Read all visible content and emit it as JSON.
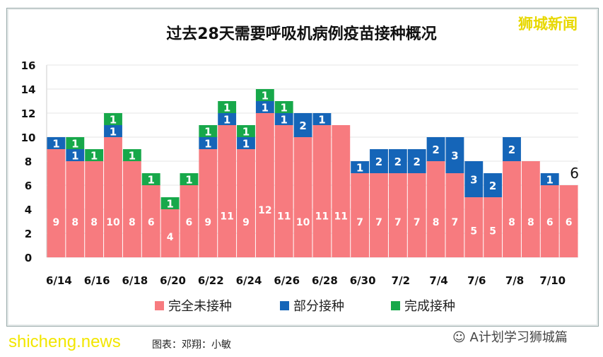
{
  "chart_data": {
    "type": "bar",
    "stacked": true,
    "title": "过去28天需要呼吸机病例疫苗接种概况",
    "categories": [
      "6/14",
      "6/15",
      "6/16",
      "6/17",
      "6/18",
      "6/19",
      "6/20",
      "6/21",
      "6/22",
      "6/23",
      "6/24",
      "6/25",
      "6/26",
      "6/27",
      "6/28",
      "6/29",
      "6/30",
      "7/1",
      "7/2",
      "7/3",
      "7/4",
      "7/5",
      "7/6",
      "7/7",
      "7/8",
      "7/9",
      "7/10",
      "7/11"
    ],
    "tick_labels": [
      "6/14",
      "6/16",
      "6/18",
      "6/20",
      "6/22",
      "6/24",
      "6/26",
      "6/28",
      "6/30",
      "7/2",
      "7/4",
      "7/6",
      "7/8",
      "7/10"
    ],
    "series": [
      {
        "name": "完全未接种",
        "color": "#f77b7f",
        "values": [
          9,
          8,
          8,
          10,
          8,
          6,
          4,
          6,
          9,
          11,
          9,
          12,
          11,
          10,
          11,
          11,
          7,
          7,
          7,
          7,
          8,
          7,
          5,
          5,
          8,
          8,
          6,
          6
        ]
      },
      {
        "name": "部分接种",
        "color": "#1565b8",
        "values": [
          1,
          1,
          0,
          1,
          0,
          0,
          0,
          0,
          1,
          1,
          1,
          1,
          1,
          2,
          1,
          0,
          1,
          2,
          2,
          2,
          2,
          3,
          3,
          2,
          2,
          0,
          1,
          0
        ]
      },
      {
        "name": "完成接种",
        "color": "#17a84a",
        "values": [
          0,
          1,
          1,
          1,
          1,
          1,
          1,
          1,
          1,
          1,
          1,
          1,
          1,
          0,
          0,
          0,
          0,
          0,
          0,
          0,
          0,
          0,
          0,
          0,
          0,
          0,
          0,
          0
        ]
      }
    ],
    "yticks": [
      0,
      2,
      4,
      6,
      8,
      10,
      12,
      14,
      16
    ],
    "ylim": [
      0,
      16
    ],
    "grid": true,
    "legend": "bottom",
    "annotation": "6"
  },
  "watermarks": {
    "top": "狮城新闻",
    "site": "shicheng.news",
    "wechat": "A计划学习狮城篇"
  },
  "credit": "图表：邓翔：小敏"
}
